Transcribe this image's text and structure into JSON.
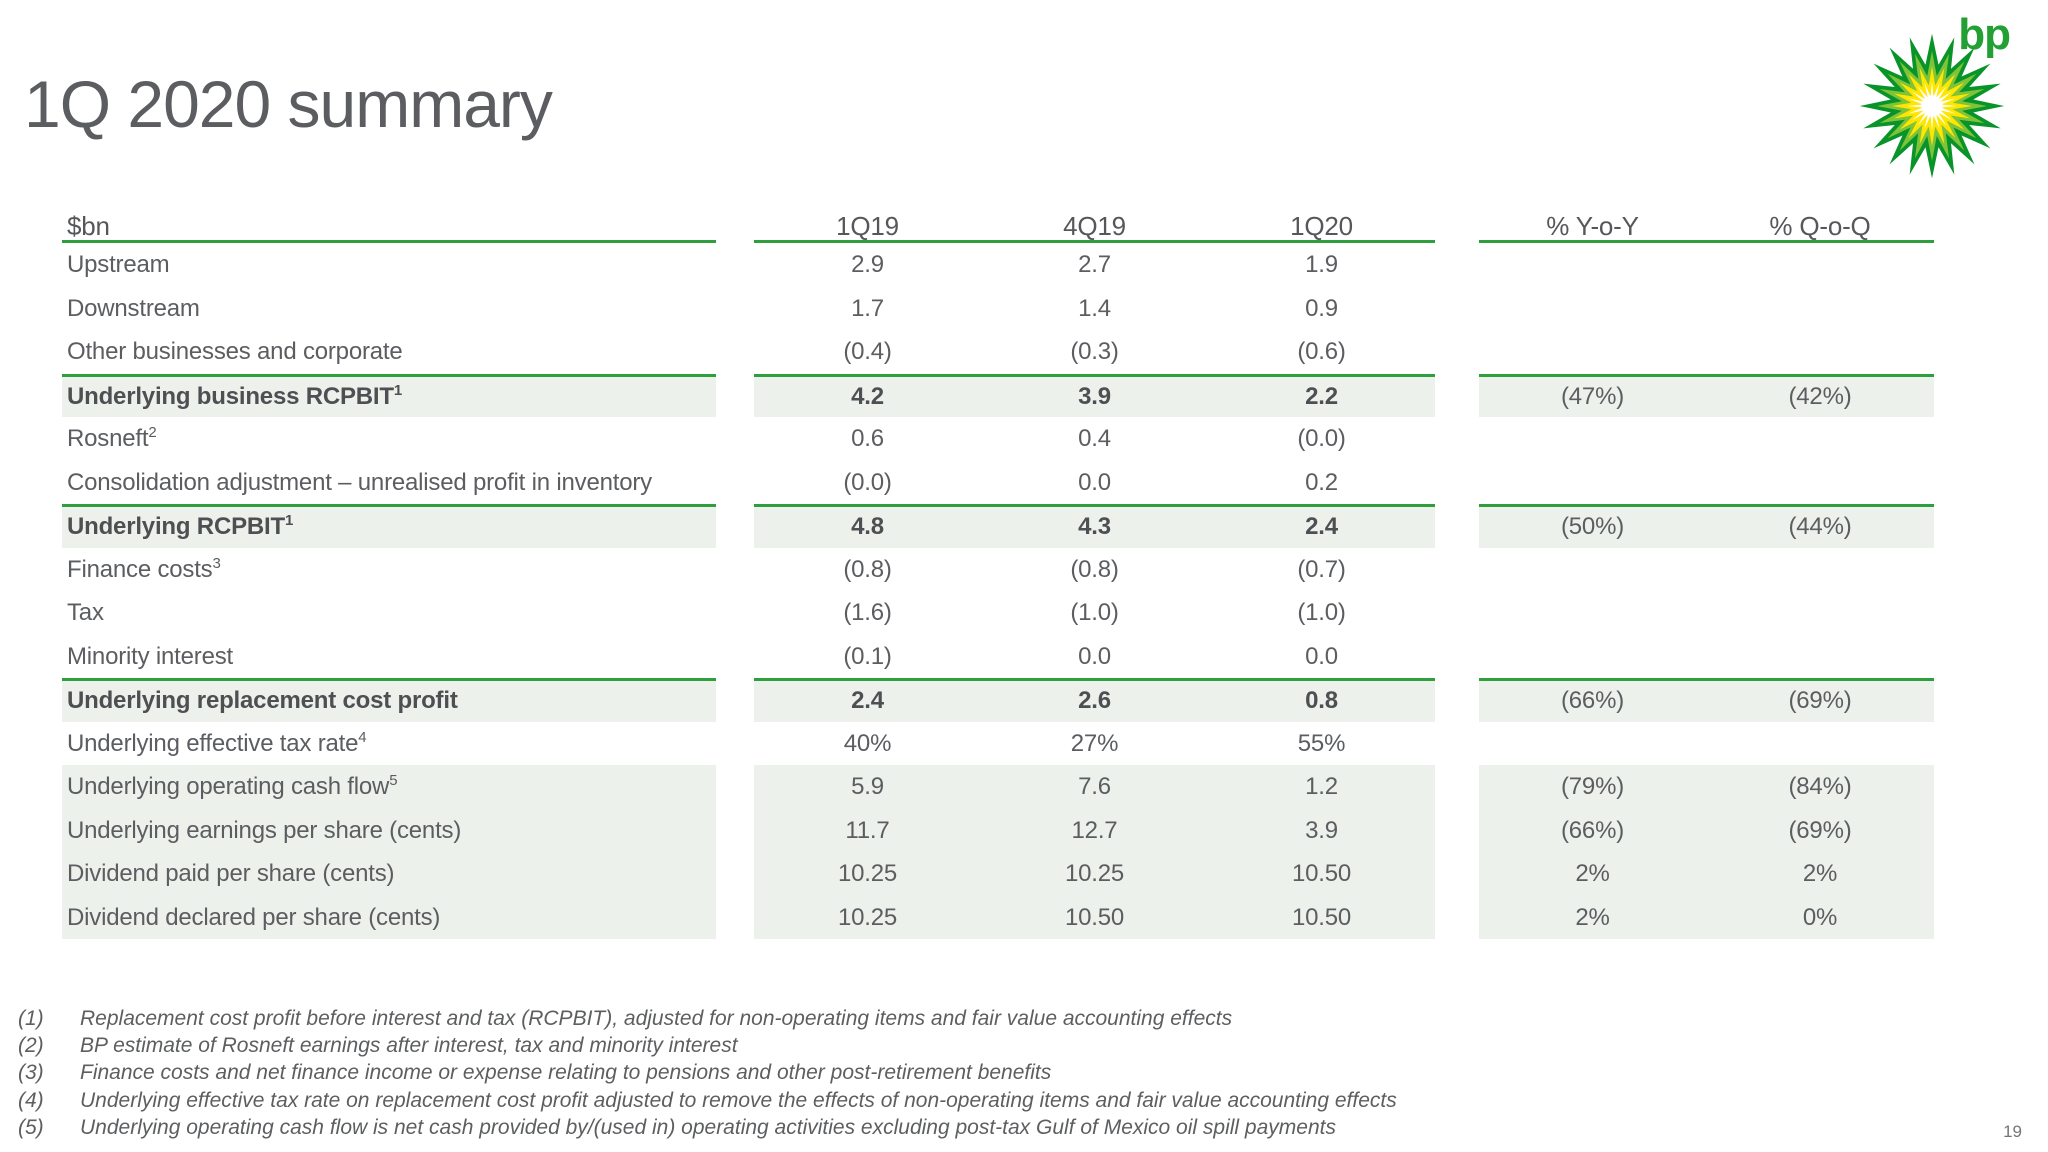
{
  "title": "1Q 2020 summary",
  "logo": {
    "wordmark": "bp"
  },
  "page_number": "19",
  "colors": {
    "accent_green": "#2f9e3d",
    "row_shade": "#edf1ec",
    "helios_dark_green": "#089428",
    "helios_light_green": "#7fc339",
    "helios_yellow": "#ffe600",
    "helios_center": "#ffffff",
    "wordmark_green": "#23a033"
  },
  "table": {
    "unit_header": "$bn",
    "columns": [
      "1Q19",
      "4Q19",
      "1Q20",
      "% Y-o-Y",
      "% Q-o-Q"
    ],
    "rows": [
      {
        "label": "Upstream",
        "sup": "",
        "values": [
          "2.9",
          "2.7",
          "1.9"
        ],
        "yoy": "",
        "qoq": "",
        "style": "plain"
      },
      {
        "label": "Downstream",
        "sup": "",
        "values": [
          "1.7",
          "1.4",
          "0.9"
        ],
        "yoy": "",
        "qoq": "",
        "style": "plain"
      },
      {
        "label": "Other businesses and corporate",
        "sup": "",
        "values": [
          "(0.4)",
          "(0.3)",
          "(0.6)"
        ],
        "yoy": "",
        "qoq": "",
        "style": "plain"
      },
      {
        "label": "Underlying business RCPBIT",
        "sup": "1",
        "values": [
          "4.2",
          "3.9",
          "2.2"
        ],
        "yoy": "(47%)",
        "qoq": "(42%)",
        "style": "subtotal"
      },
      {
        "label": "Rosneft",
        "sup": "2",
        "values": [
          "0.6",
          "0.4",
          "(0.0)"
        ],
        "yoy": "",
        "qoq": "",
        "style": "plain"
      },
      {
        "label": "Consolidation adjustment – unrealised profit in inventory",
        "sup": "",
        "values": [
          "(0.0)",
          "0.0",
          "0.2"
        ],
        "yoy": "",
        "qoq": "",
        "style": "plain"
      },
      {
        "label": "Underlying RCPBIT",
        "sup": "1",
        "values": [
          "4.8",
          "4.3",
          "2.4"
        ],
        "yoy": "(50%)",
        "qoq": "(44%)",
        "style": "subtotal"
      },
      {
        "label": "Finance costs",
        "sup": "3",
        "values": [
          "(0.8)",
          "(0.8)",
          "(0.7)"
        ],
        "yoy": "",
        "qoq": "",
        "style": "plain"
      },
      {
        "label": "Tax",
        "sup": "",
        "values": [
          "(1.6)",
          "(1.0)",
          "(1.0)"
        ],
        "yoy": "",
        "qoq": "",
        "style": "plain"
      },
      {
        "label": "Minority interest",
        "sup": "",
        "values": [
          "(0.1)",
          "0.0",
          "0.0"
        ],
        "yoy": "",
        "qoq": "",
        "style": "plain"
      },
      {
        "label": "Underlying replacement cost profit",
        "sup": "",
        "values": [
          "2.4",
          "2.6",
          "0.8"
        ],
        "yoy": "(66%)",
        "qoq": "(69%)",
        "style": "subtotal"
      },
      {
        "label": "Underlying effective tax rate",
        "sup": "4",
        "values": [
          "40%",
          "27%",
          "55%"
        ],
        "yoy": "",
        "qoq": "",
        "style": "plain"
      },
      {
        "label": "Underlying operating cash flow",
        "sup": "5",
        "values": [
          "5.9",
          "7.6",
          "1.2"
        ],
        "yoy": "(79%)",
        "qoq": "(84%)",
        "style": "band"
      },
      {
        "label": "Underlying earnings per share (cents)",
        "sup": "",
        "values": [
          "11.7",
          "12.7",
          "3.9"
        ],
        "yoy": "(66%)",
        "qoq": "(69%)",
        "style": "band"
      },
      {
        "label": "Dividend paid per share (cents)",
        "sup": "",
        "values": [
          "10.25",
          "10.25",
          "10.50"
        ],
        "yoy": "2%",
        "qoq": "2%",
        "style": "band"
      },
      {
        "label": "Dividend declared per share (cents)",
        "sup": "",
        "values": [
          "10.25",
          "10.50",
          "10.50"
        ],
        "yoy": "2%",
        "qoq": "0%",
        "style": "band"
      }
    ]
  },
  "footnotes": [
    {
      "num": "(1)",
      "text": "Replacement cost profit before interest and tax (RCPBIT), adjusted for non-operating items and fair value accounting effects"
    },
    {
      "num": "(2)",
      "text": "BP estimate of Rosneft earnings after interest, tax and minority interest"
    },
    {
      "num": "(3)",
      "text": "Finance costs and net finance income or expense relating to pensions and other post-retirement benefits"
    },
    {
      "num": "(4)",
      "text": "Underlying effective tax rate on replacement cost profit adjusted to remove the effects of non-operating items and fair value accounting effects"
    },
    {
      "num": "(5)",
      "text": "Underlying operating cash flow is net cash provided by/(used in) operating activities excluding post-tax Gulf of Mexico oil spill payments"
    }
  ]
}
